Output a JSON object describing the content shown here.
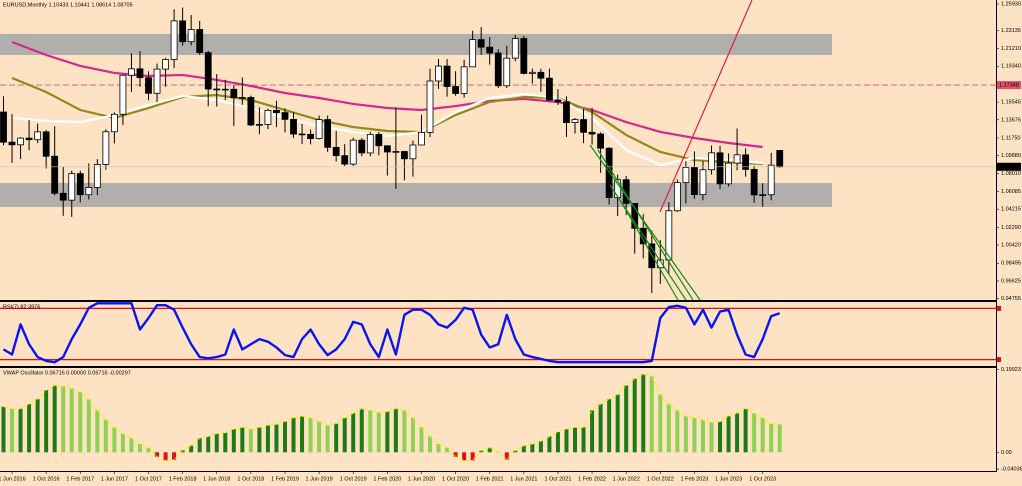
{
  "chart_data": [
    {
      "type": "candlestick",
      "title": "EURUSD,Monthly  1.10433 1.10441 1.08614 1.08705",
      "categories": [
        null,
        "1 Jun 2016",
        null,
        null,
        null,
        "1 Oct 2016",
        null,
        null,
        null,
        "1 Feb 2017",
        null,
        null,
        null,
        "1 Jun 2017",
        null,
        null,
        null,
        "1 Oct 2017",
        null,
        null,
        null,
        "1 Feb 2018",
        null,
        null,
        null,
        "1 Jun 2018",
        null,
        null,
        null,
        "1 Oct 2018",
        null,
        null,
        null,
        "1 Feb 2019",
        null,
        null,
        null,
        "1 Jun 2019",
        null,
        null,
        null,
        "1 Oct 2019",
        null,
        null,
        null,
        "1 Feb 2020",
        null,
        null,
        null,
        "1 Jun 2020",
        null,
        null,
        null,
        "1 Oct 2020",
        null,
        null,
        null,
        "1 Feb 2021",
        null,
        null,
        null,
        "1 Jun 2021",
        null,
        null,
        null,
        "1 Oct 2021",
        null,
        null,
        null,
        "1 Feb 2022",
        null,
        null,
        null,
        "1 Jun 2022",
        null,
        null,
        null,
        "1 Oct 2022",
        null,
        null,
        null,
        "1 Feb 2023",
        null,
        null,
        null,
        "1 Jun 2023",
        null,
        null,
        null,
        "1 Oct 2023",
        null,
        null
      ],
      "open": [
        1.145,
        1.1131,
        1.1103,
        1.1174,
        1.1157,
        1.124,
        1.0982,
        1.059,
        1.0517,
        1.0798,
        1.0575,
        1.0652,
        1.0895,
        1.1241,
        1.1426,
        1.1839,
        1.1907,
        1.1813,
        1.1648,
        1.1904,
        1.2005,
        1.2414,
        1.2194,
        1.2323,
        1.2078,
        1.1693,
        1.1684,
        1.1691,
        1.1602,
        1.1604,
        1.1313,
        1.1318,
        1.1467,
        1.1444,
        1.1372,
        1.1217,
        1.1214,
        1.1169,
        1.137,
        1.1076,
        1.0988,
        1.0899,
        1.1152,
        1.1017,
        1.1213,
        1.1093,
        1.1027,
        1.1032,
        1.0955,
        1.1101,
        1.1234,
        1.1778,
        1.1936,
        1.172,
        1.1646,
        1.1928,
        1.2216,
        1.2136,
        1.2074,
        1.1728,
        1.202,
        1.2227,
        1.1858,
        1.187,
        1.1808,
        1.1577,
        1.1558,
        1.1338,
        1.137,
        1.1235,
        1.1217,
        1.1067,
        1.0545,
        1.0734,
        1.0483,
        1.022,
        1.0055,
        0.9802,
        0.9884,
        1.0405,
        1.0703,
        1.0863,
        1.0576,
        1.0839,
        1.1018,
        1.069,
        1.0909,
        1.0997,
        1.0843,
        1.0573,
        1.0575,
        1.10433
      ],
      "high": [
        1.1616,
        1.1428,
        1.1185,
        1.1366,
        1.1327,
        1.126,
        1.13,
        1.0874,
        1.0829,
        1.0829,
        1.0906,
        1.0951,
        1.1268,
        1.1446,
        1.1846,
        1.207,
        1.2092,
        1.188,
        1.1962,
        1.2023,
        1.2537,
        1.2555,
        1.2476,
        1.2414,
        1.2097,
        1.1852,
        1.1791,
        1.1734,
        1.1815,
        1.1623,
        1.15,
        1.1486,
        1.157,
        1.1489,
        1.1448,
        1.1324,
        1.1265,
        1.1412,
        1.1412,
        1.125,
        1.1109,
        1.1179,
        1.1175,
        1.124,
        1.1239,
        1.1095,
        1.1496,
        1.1039,
        1.1147,
        1.1422,
        1.1909,
        1.2011,
        1.2011,
        1.1881,
        1.2003,
        1.231,
        1.2349,
        1.2243,
        1.2114,
        1.215,
        1.2266,
        1.2254,
        1.1909,
        1.1908,
        1.1909,
        1.1692,
        1.1616,
        1.1387,
        1.1483,
        1.1495,
        1.1234,
        1.1076,
        1.0787,
        1.0774,
        1.0486,
        1.0368,
        1.0198,
        1.0094,
        1.0497,
        1.0736,
        1.0929,
        1.1033,
        1.093,
        1.1095,
        1.1092,
        1.1012,
        1.1276,
        1.1065,
        1.0882,
        1.0695,
        1.1017,
        1.10441
      ],
      "low": [
        1.1098,
        1.0912,
        1.0952,
        1.1046,
        1.1122,
        1.0852,
        1.0569,
        1.0352,
        1.034,
        1.0494,
        1.0525,
        1.057,
        1.0839,
        1.1118,
        1.1312,
        1.1662,
        1.1717,
        1.1575,
        1.1554,
        1.1718,
        1.1915,
        1.2153,
        1.2155,
        1.2055,
        1.151,
        1.1508,
        1.1576,
        1.1301,
        1.1526,
        1.1302,
        1.1216,
        1.1269,
        1.1289,
        1.1234,
        1.1176,
        1.111,
        1.1107,
        1.1158,
        1.1028,
        1.0926,
        1.0879,
        1.0879,
        1.0981,
        1.0981,
        1.0992,
        1.0778,
        1.0636,
        1.0727,
        1.0767,
        1.11,
        1.1185,
        1.1695,
        1.1612,
        1.1622,
        1.1603,
        1.1924,
        1.2054,
        1.1952,
        1.1704,
        1.1704,
        1.1986,
        1.1847,
        1.1752,
        1.1664,
        1.1563,
        1.1524,
        1.1186,
        1.1222,
        1.1121,
        1.1106,
        1.0806,
        1.0471,
        1.0349,
        1.0359,
        0.9952,
        0.9901,
        0.9535,
        0.9632,
        0.973,
        1.0393,
        1.0483,
        1.0533,
        1.0516,
        1.0788,
        1.0635,
        1.0662,
        1.0833,
        1.0766,
        1.0488,
        1.0448,
        1.0516,
        1.08614
      ],
      "close": [
        1.1131,
        1.1103,
        1.1174,
        1.1157,
        1.124,
        1.0982,
        1.059,
        1.0517,
        1.0798,
        1.0575,
        1.0652,
        1.0895,
        1.1241,
        1.1426,
        1.1839,
        1.1907,
        1.1813,
        1.1648,
        1.1904,
        1.2005,
        1.2414,
        1.2194,
        1.2323,
        1.2078,
        1.1693,
        1.1684,
        1.1691,
        1.1602,
        1.1604,
        1.1313,
        1.1318,
        1.1467,
        1.1444,
        1.1372,
        1.1217,
        1.1214,
        1.1169,
        1.137,
        1.1076,
        1.0988,
        1.0899,
        1.1152,
        1.1017,
        1.1213,
        1.1093,
        1.1027,
        1.1032,
        1.0955,
        1.1101,
        1.1234,
        1.1778,
        1.1936,
        1.172,
        1.1646,
        1.1928,
        1.2216,
        1.2136,
        1.2074,
        1.1728,
        1.202,
        1.2227,
        1.1858,
        1.187,
        1.1808,
        1.1577,
        1.1558,
        1.1338,
        1.137,
        1.1235,
        1.1217,
        1.1067,
        1.0545,
        1.0734,
        1.0483,
        1.022,
        1.0055,
        0.9802,
        0.9884,
        1.0405,
        1.0703,
        1.0863,
        1.0576,
        1.0839,
        1.1018,
        1.069,
        1.0909,
        1.0997,
        1.0843,
        1.0573,
        1.0575,
        1.0888,
        1.08705
      ],
      "up_color": "#ffffff",
      "down_color": "#000000",
      "ylim": [
        0.9461,
        1.2635
      ],
      "yticks": [
        {
          "value": 1.2593,
          "label": "1.25930"
        },
        1.23135,
        {
          "value": 1.2121,
          "label": "1.21210"
        },
        {
          "value": 1.1934,
          "label": "1.19340"
        },
        1.15545,
        1.13675,
        {
          "value": 1.1175,
          "label": "1.11750"
        },
        {
          "value": 1.0988,
          "label": "1.09880"
        },
        {
          "value": 1.0801,
          "label": "1.08010"
        },
        1.06085,
        1.04215,
        {
          "value": 1.0229,
          "label": "1.02290"
        },
        {
          "value": 1.0042,
          "label": "1.00420"
        },
        0.98495,
        0.96625,
        0.94755
      ],
      "zones": [
        {
          "top": 1.2276,
          "bottom": 1.2053,
          "color": "#a8a8a8"
        },
        {
          "top": 1.0699,
          "bottom": 1.0445,
          "color": "#a8a8a8"
        }
      ],
      "levels": [
        {
          "value": 1.17348,
          "color": "#e0506a"
        }
      ],
      "last_price_color": "#000000",
      "lines": [
        {
          "color": "#d6288c",
          "x": [
            "1 Jun 2016",
            "1 Oct 2016",
            "1 Feb 2017",
            "1 Jun 2017",
            "1 Oct 2017",
            "1 Feb 2018",
            "1 Jun 2018",
            "1 Oct 2018",
            "1 Feb 2019",
            "1 Jun 2019",
            "1 Oct 2019",
            "1 Feb 2020",
            "1 Jun 2020",
            "1 Oct 2020",
            "1 Feb 2021",
            "1 Jun 2021",
            "1 Oct 2021",
            "1 Feb 2022",
            "1 Jun 2022",
            "1 Oct 2022",
            "1 Feb 2023",
            "1 Jun 2023",
            "1 Oct 2023"
          ],
          "values": [
            1.2191,
            1.2053,
            1.1937,
            1.1863,
            1.1831,
            1.1842,
            1.1789,
            1.1725,
            1.1651,
            1.1598,
            1.1535,
            1.1492,
            1.1471,
            1.1513,
            1.1567,
            1.1588,
            1.1556,
            1.1471,
            1.1344,
            1.1239,
            1.1175,
            1.1122,
            1.108
          ]
        },
        {
          "color": "#8f8a1c",
          "x": [
            "1 Jun 2016",
            "1 Oct 2016",
            "1 Feb 2017",
            "1 Jun 2017",
            "1 Oct 2017",
            "1 Feb 2018",
            "1 Jun 2018",
            "1 Oct 2018",
            "1 Feb 2019",
            "1 Jun 2019",
            "1 Oct 2019",
            "1 Feb 2020",
            "1 Jun 2020",
            "1 Oct 2020",
            "1 Feb 2021",
            "1 Jun 2021",
            "1 Oct 2021",
            "1 Feb 2022",
            "1 Jun 2022",
            "1 Oct 2022",
            "1 Feb 2023",
            "1 Jun 2023",
            "1 Oct 2023"
          ],
          "values": [
            1.181,
            1.1662,
            1.1471,
            1.1387,
            1.1492,
            1.1609,
            1.163,
            1.1577,
            1.1471,
            1.1365,
            1.1291,
            1.1249,
            1.1238,
            1.1418,
            1.1556,
            1.1609,
            1.1598,
            1.145,
            1.1207,
            1.1027,
            1.0942,
            1.0921,
            1.09
          ]
        },
        {
          "color": "#ffffff",
          "x": [
            "1 Jun 2016",
            "1 Oct 2016",
            "1 Feb 2017",
            "1 Jun 2017",
            "1 Oct 2017",
            "1 Feb 2018",
            "1 Jun 2018",
            "1 Oct 2018",
            "1 Feb 2019",
            "1 Jun 2019",
            "1 Oct 2019",
            "1 Feb 2020",
            "1 Jun 2020",
            "1 Oct 2020",
            "1 Feb 2021",
            "1 Jun 2021",
            "1 Oct 2021",
            "1 Feb 2022",
            "1 Jun 2022",
            "1 Oct 2022",
            "1 Feb 2023",
            "1 Jun 2023",
            "1 Oct 2023"
          ],
          "values": [
            1.1387,
            1.1355,
            1.1344,
            1.1418,
            1.1524,
            1.1619,
            1.1577,
            1.1492,
            1.1387,
            1.1302,
            1.1238,
            1.1196,
            1.1238,
            1.145,
            1.1598,
            1.1641,
            1.1598,
            1.1387,
            1.1048,
            1.0889,
            1.0963,
            1.0942,
            1.091
          ]
        }
      ]
    },
    {
      "type": "line",
      "title": "RSI(7) 82.3976",
      "values": [
        26,
        18,
        65,
        34,
        14,
        8,
        6,
        14,
        42,
        65,
        91,
        98,
        98,
        98,
        98,
        98,
        57,
        75,
        95,
        95,
        88,
        60,
        34,
        14,
        12,
        14,
        18,
        57,
        26,
        34,
        42,
        38,
        29,
        17,
        14,
        42,
        57,
        34,
        17,
        26,
        42,
        69,
        65,
        34,
        14,
        57,
        18,
        80,
        88,
        88,
        80,
        65,
        60,
        72,
        91,
        88,
        49,
        29,
        34,
        80,
        42,
        18,
        14,
        11,
        8,
        6,
        6,
        6,
        6,
        6,
        6,
        6,
        6,
        6,
        6,
        6,
        8,
        75,
        92,
        94,
        91,
        65,
        88,
        60,
        85,
        88,
        49,
        18,
        14,
        42,
        78,
        82.3976
      ],
      "color": "#0a14f0",
      "ylim": [
        0,
        100
      ],
      "levels": [
        90,
        10
      ],
      "level_color": "#e01010"
    },
    {
      "type": "bar",
      "title": "VWAP Oscillator 0.06716 0.00000 0.06716 -0.00297",
      "values": [
        0.11,
        0.105,
        0.105,
        0.116,
        0.128,
        0.15,
        0.161,
        0.159,
        0.154,
        0.145,
        0.128,
        0.101,
        0.078,
        0.06,
        0.045,
        0.034,
        0.02,
        0.011,
        -0.011,
        -0.02,
        -0.018,
        0.005,
        0.016,
        0.034,
        0.038,
        0.045,
        0.047,
        0.056,
        0.06,
        0.056,
        0.06,
        0.065,
        0.067,
        0.074,
        0.083,
        0.087,
        0.083,
        0.074,
        0.065,
        0.069,
        0.083,
        0.094,
        0.105,
        0.101,
        0.096,
        0.098,
        0.105,
        0.101,
        0.083,
        0.06,
        0.038,
        0.02,
        0.011,
        -0.011,
        -0.02,
        -0.02,
        0.004,
        0.011,
        0.002,
        -0.018,
        0.004,
        0.016,
        0.02,
        0.027,
        0.038,
        0.049,
        0.056,
        0.06,
        0.06,
        0.101,
        0.116,
        0.128,
        0.139,
        0.161,
        0.177,
        0.188,
        0.183,
        0.139,
        0.116,
        0.101,
        0.087,
        0.083,
        0.078,
        0.072,
        0.074,
        0.087,
        0.094,
        0.105,
        0.094,
        0.083,
        0.069,
        0.06716
      ],
      "up_color": "#1e7a12",
      "down_color": "#8fd150",
      "negative_color": "#e01010",
      "line_color": "#f5f000",
      "ylim": [
        -0.045,
        0.203
      ],
      "yticks": [
        0.19923,
        {
          "value": 0,
          "label": "0.00"
        },
        -0.04036
      ]
    }
  ]
}
